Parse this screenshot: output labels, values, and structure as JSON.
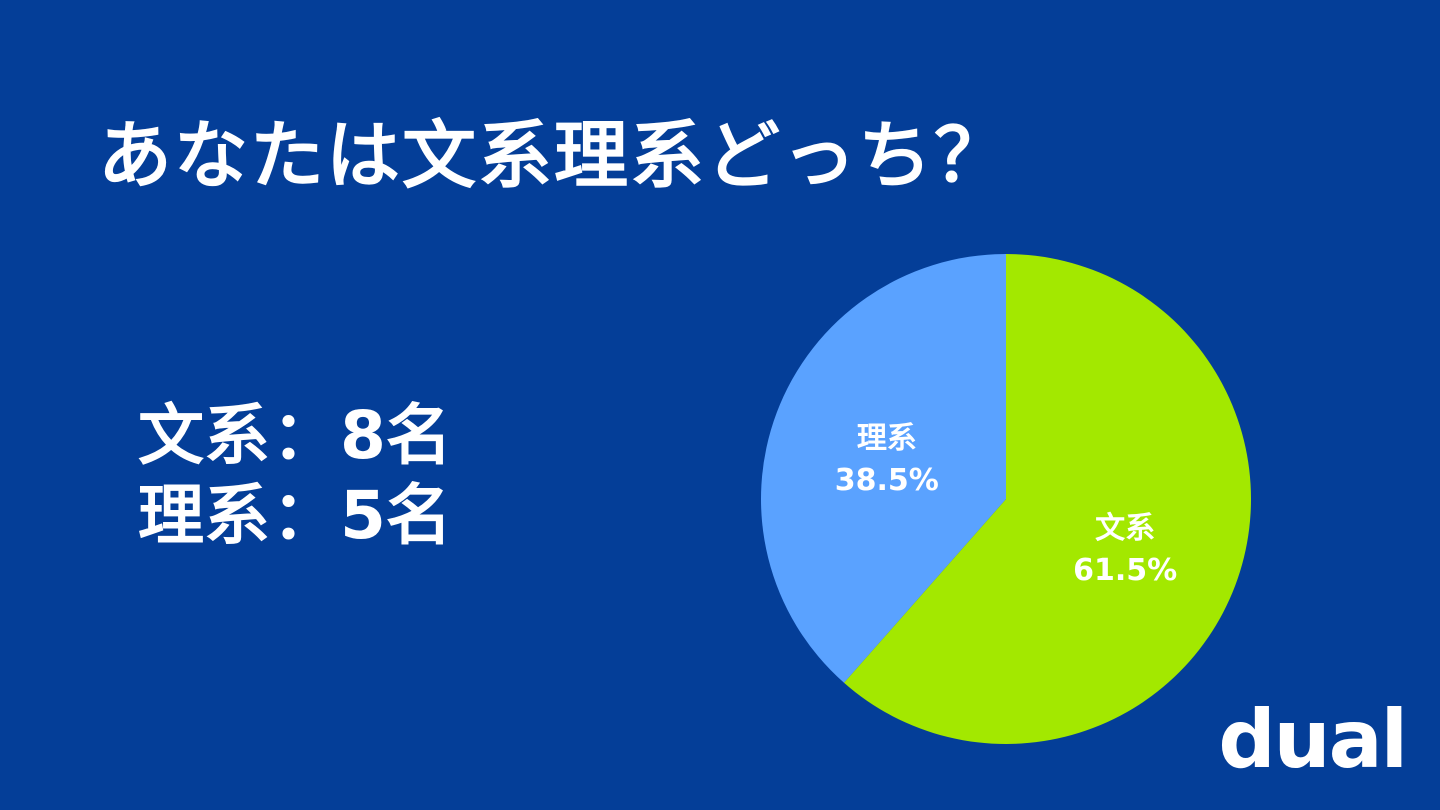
{
  "title": "あなたは文系理系どっち？",
  "counts": [
    {
      "label": "文系",
      "separator": "：",
      "value": "8名"
    },
    {
      "label": "理系",
      "separator": "：",
      "value": "5名"
    }
  ],
  "logo": "dual",
  "colors": {
    "background": "#043e98",
    "bunkei": "#a3e800",
    "rikei": "#5aa2ff",
    "text": "#ffffff"
  },
  "chart_data": {
    "type": "pie",
    "title": "",
    "slices": [
      {
        "name": "文系",
        "value": 61.5,
        "label": "61.5%",
        "color": "#a3e800"
      },
      {
        "name": "理系",
        "value": 38.5,
        "label": "38.5%",
        "color": "#5aa2ff"
      }
    ],
    "start": "12 o'clock",
    "direction": "clockwise",
    "legend": "none"
  }
}
